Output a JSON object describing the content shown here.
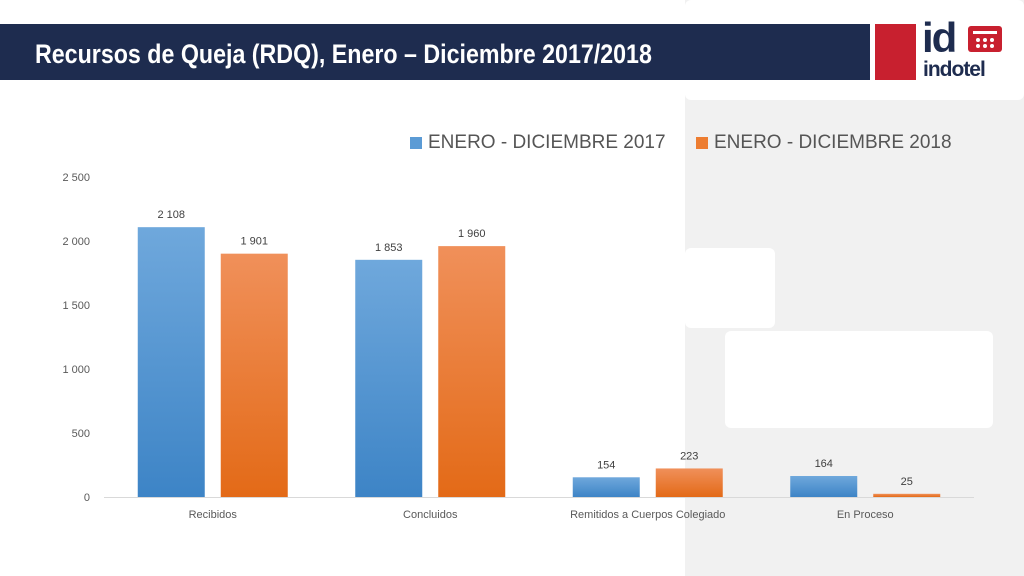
{
  "slide": {
    "title": "Recursos de Queja (RDQ), Enero – Diciembre 2017/2018",
    "logo_text": "indotel",
    "logo_mark": "id"
  },
  "colors": {
    "title_bg": "#1e2c4f",
    "brand_red": "#c8202f",
    "series_2017": "#5b9bd5",
    "series_2018": "#ed7d31"
  },
  "chart_data": {
    "type": "bar",
    "categories": [
      "Recibidos",
      "Concluidos",
      "Remitidos a Cuerpos Colegiado",
      "En Proceso"
    ],
    "series": [
      {
        "name": "ENERO - DICIEMBRE 2017",
        "values": [
          2108,
          1853,
          154,
          164
        ],
        "labels": [
          "2 108",
          "1 853",
          "154",
          "164"
        ]
      },
      {
        "name": "ENERO - DICIEMBRE 2018",
        "values": [
          1901,
          1960,
          223,
          25
        ],
        "labels": [
          "1 901",
          "1 960",
          "223",
          "25"
        ]
      }
    ],
    "yticks": [
      0,
      500,
      1000,
      1500,
      2000,
      2500
    ],
    "ytick_labels": [
      "0",
      "500",
      "1 000",
      "1 500",
      "2 000",
      "2 500"
    ],
    "ylim": [
      0,
      2500
    ],
    "legend_position": "top",
    "grid": false
  }
}
